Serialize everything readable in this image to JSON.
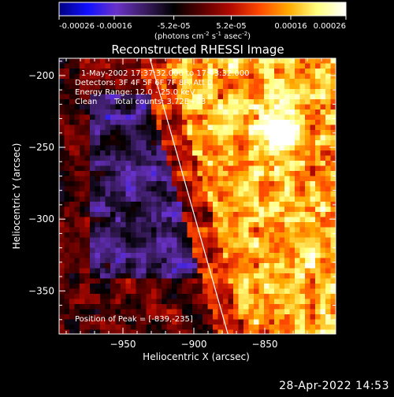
{
  "colorbar": {
    "tick_labels": [
      "-0.00026",
      "-0.00016",
      "-5.2e-05",
      "5.2e-05",
      "0.00016",
      "0.00026"
    ],
    "tick_values": [
      -0.00026,
      -0.00016,
      -5.2e-05,
      5.2e-05,
      0.00016,
      0.00026
    ],
    "unit_parts": [
      "(photons cm",
      "-2",
      " s",
      "-1",
      " asec",
      "-2",
      ")"
    ],
    "range": [
      -0.00026,
      0.00026
    ]
  },
  "annotations": {
    "time_range": "1-May-2002 17:37:32.000 to 17:43:32.000",
    "detectors": "Detectors: 3F 4F 5F 6F 7F 8F, Att 0",
    "energy_range": "Energy Range: 12.0 - 25.0 keV",
    "clean": "Clean",
    "total_counts": "Total counts: 3.72E+03",
    "peak": "Position of Peak = [-839,-235]"
  },
  "chart_data": {
    "type": "heatmap",
    "title": "Reconstructed RHESSI Image",
    "xlabel": "Heliocentric X (arcsec)",
    "ylabel": "Heliocentric Y (arcsec)",
    "xlim": [
      -995,
      -800
    ],
    "ylim": [
      -380,
      -188
    ],
    "x_ticks": [
      -950,
      -900,
      -850
    ],
    "x_tick_labels": [
      "−950",
      "−900",
      "−850"
    ],
    "y_ticks": [
      -200,
      -250,
      -300,
      -350
    ],
    "y_tick_labels": [
      "−200",
      "−250",
      "−300",
      "−350"
    ],
    "limb_line": [
      [
        -931,
        -188
      ],
      [
        -876,
        -380
      ]
    ],
    "peak_position": [
      -839,
      -235
    ],
    "colormap": [
      "#000080",
      "#1010ff",
      "#6a32c8",
      "#3a1c60",
      "#000000",
      "#5a0000",
      "#b40a00",
      "#ff4a00",
      "#ffaa00",
      "#ffff80",
      "#ffffff"
    ]
  },
  "footer": {
    "timestamp": "28-Apr-2022 14:53"
  }
}
